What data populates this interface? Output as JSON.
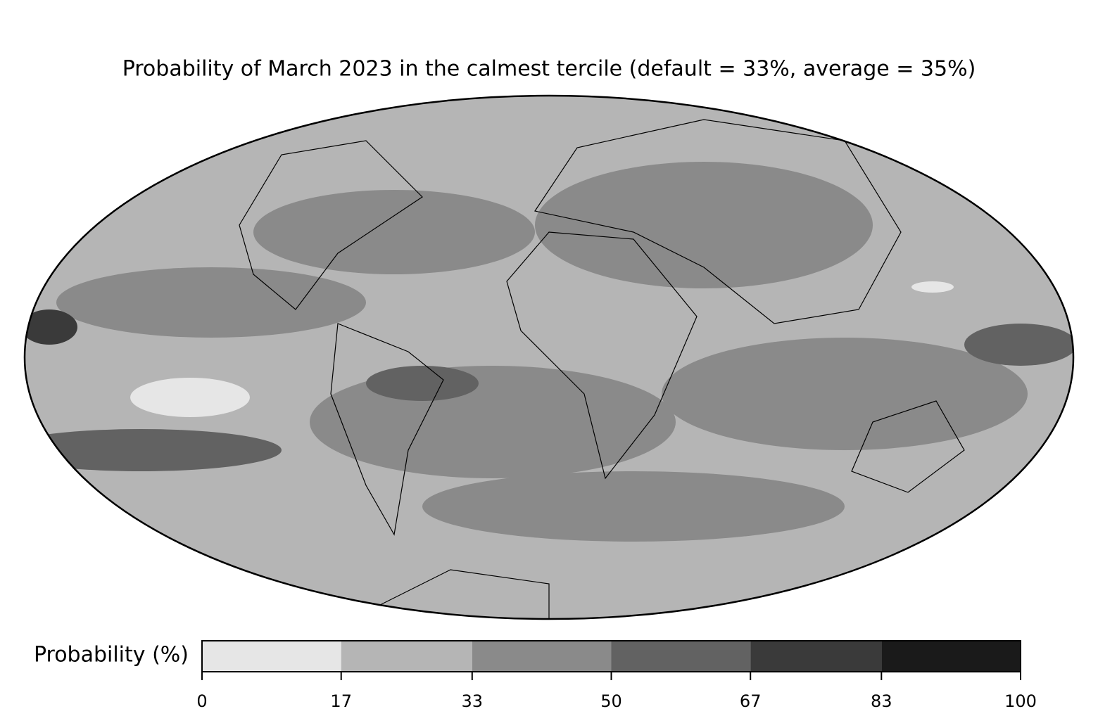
{
  "title": "Probability of March 2023 in the calmest tercile (default = 33%, average = 35%)",
  "colorbar": {
    "label": "Probability (%)",
    "lim": [
      0,
      100
    ],
    "ticks": [
      0,
      17,
      33,
      50,
      67,
      83,
      100
    ],
    "colors": [
      "#e6e6e6",
      "#b5b5b5",
      "#8a8a8a",
      "#626262",
      "#3a3a3a",
      "#1a1a1a"
    ]
  }
}
